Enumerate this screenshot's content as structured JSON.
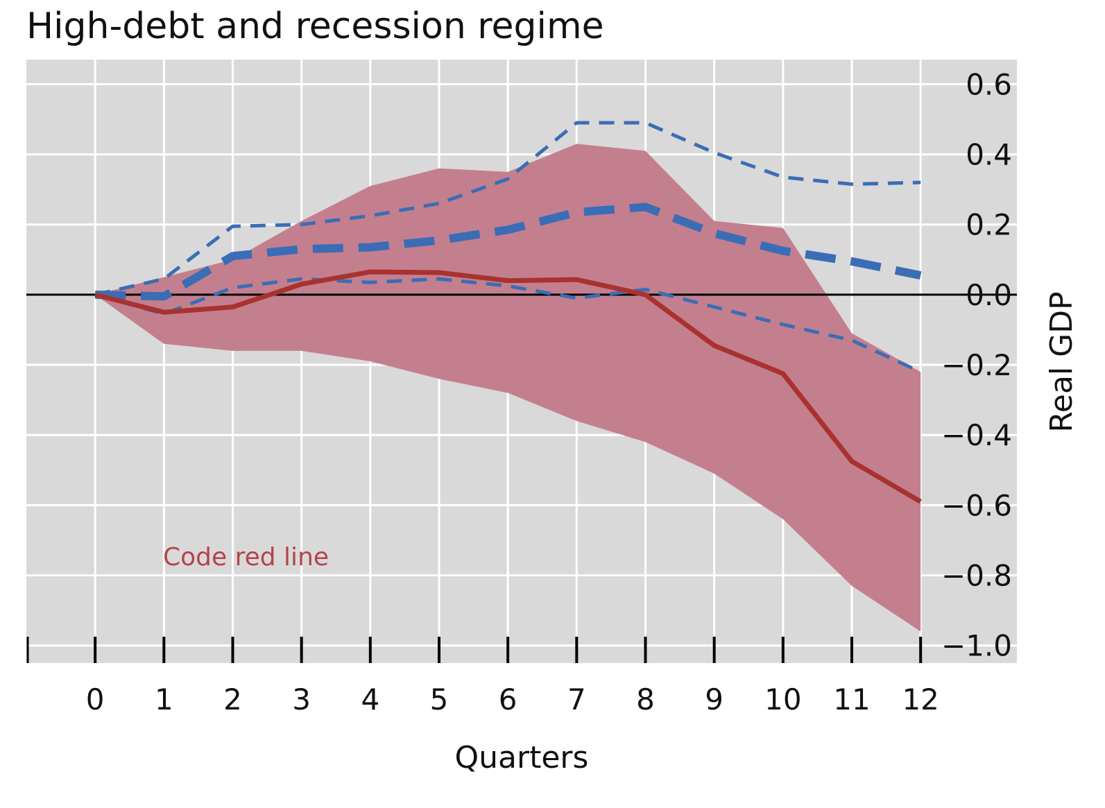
{
  "chart_data": {
    "type": "line",
    "title": "High-debt and recession regime",
    "xlabel": "Quarters",
    "ylabel": "Real GDP",
    "x": [
      0,
      1,
      2,
      3,
      4,
      5,
      6,
      7,
      8,
      9,
      10,
      11,
      12
    ],
    "xlim": [
      -1,
      13.4
    ],
    "ylim": [
      -1.05,
      0.67
    ],
    "yticks": [
      0.6,
      0.4,
      0.2,
      0.0,
      -0.2,
      -0.4,
      -0.6,
      -0.8,
      -1.0
    ],
    "ytick_labels": [
      "0.6",
      "0.4",
      "0.2",
      "0.0",
      "−0.2",
      "−0.4",
      "−0.6",
      "−0.8",
      "−1.0"
    ],
    "xtick_labels": [
      "0",
      "1",
      "2",
      "3",
      "4",
      "5",
      "6",
      "7",
      "8",
      "9",
      "10",
      "11",
      "12"
    ],
    "grid": true,
    "zero_line": true,
    "y_axis_side": "right",
    "band": {
      "upper": [
        0.0,
        0.05,
        0.1,
        0.21,
        0.31,
        0.36,
        0.35,
        0.43,
        0.41,
        0.21,
        0.19,
        -0.11,
        -0.22
      ],
      "lower": [
        0.0,
        -0.14,
        -0.16,
        -0.16,
        -0.19,
        -0.24,
        -0.28,
        -0.36,
        -0.42,
        -0.51,
        -0.64,
        -0.83,
        -0.96
      ],
      "color": "#c47f8f"
    },
    "series": [
      {
        "style": "solid",
        "color": "#a8332e",
        "values": [
          0.0,
          -0.05,
          -0.035,
          0.03,
          0.065,
          0.063,
          0.04,
          0.043,
          0.0,
          -0.145,
          -0.225,
          -0.475,
          -0.59
        ]
      },
      {
        "style": "thick-dashed",
        "color": "#3a6db5",
        "values": [
          0.0,
          -0.005,
          0.11,
          0.13,
          0.135,
          0.155,
          0.185,
          0.235,
          0.25,
          0.175,
          0.125,
          0.095,
          0.055
        ]
      },
      {
        "style": "thin-dashed",
        "color": "#3a6db5",
        "values": [
          0.0,
          0.045,
          0.195,
          0.2,
          0.225,
          0.26,
          0.33,
          0.49,
          0.49,
          0.405,
          0.335,
          0.315,
          0.32
        ]
      },
      {
        "style": "thin-dashed",
        "color": "#3a6db5",
        "values": [
          0.0,
          -0.055,
          0.02,
          0.045,
          0.035,
          0.045,
          0.025,
          -0.01,
          0.015,
          -0.035,
          -0.085,
          -0.13,
          -0.22
        ]
      }
    ],
    "annotation": {
      "text": "Code red line",
      "color": "#b5444a"
    }
  }
}
